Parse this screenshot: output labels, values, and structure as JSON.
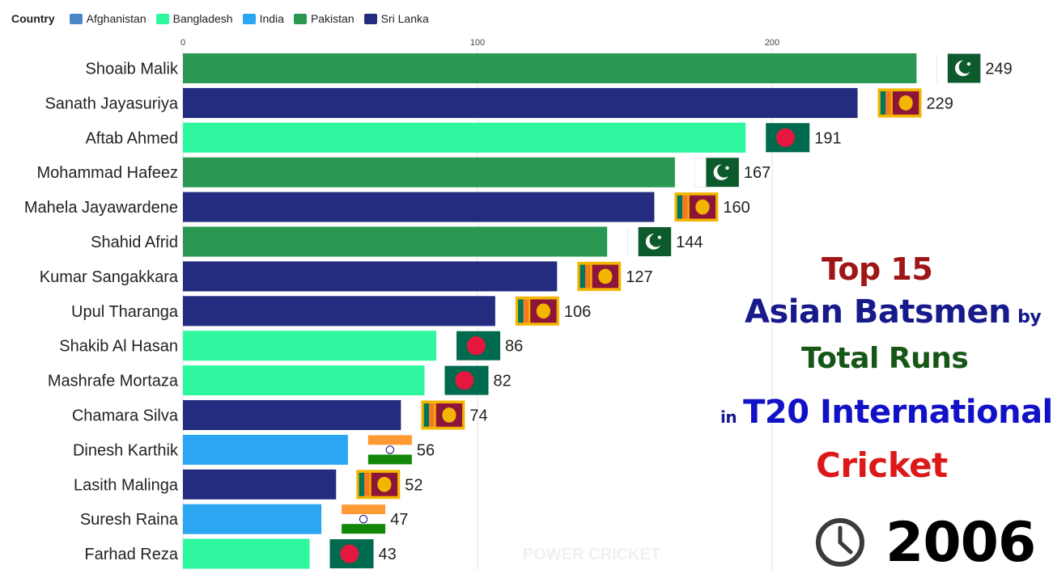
{
  "legend": {
    "title": "Country",
    "items": [
      {
        "label": "Afghanistan",
        "color": "#4a87c8"
      },
      {
        "label": "Bangladesh",
        "color": "#2ef7a0"
      },
      {
        "label": "India",
        "color": "#2aa6f2"
      },
      {
        "label": "Pakistan",
        "color": "#2a9752"
      },
      {
        "label": "Sri Lanka",
        "color": "#232c7e"
      }
    ]
  },
  "chart_data": {
    "type": "bar",
    "orientation": "horizontal",
    "categories": [
      "Shoaib Malik",
      "Sanath Jayasuriya",
      "Aftab Ahmed",
      "Mohammad Hafeez",
      "Mahela Jayawardene",
      "Shahid Afrid",
      "Kumar Sangakkara",
      "Upul Tharanga",
      "Shakib Al Hasan",
      "Mashrafe Mortaza",
      "Chamara Silva",
      "Dinesh Karthik",
      "Lasith Malinga",
      "Suresh Raina",
      "Farhad Reza"
    ],
    "values": [
      249,
      229,
      191,
      167,
      160,
      144,
      127,
      106,
      86,
      82,
      74,
      56,
      52,
      47,
      43
    ],
    "countries": [
      "Pakistan",
      "Sri Lanka",
      "Bangladesh",
      "Pakistan",
      "Sri Lanka",
      "Pakistan",
      "Sri Lanka",
      "Sri Lanka",
      "Bangladesh",
      "Bangladesh",
      "Sri Lanka",
      "India",
      "Sri Lanka",
      "India",
      "Bangladesh"
    ],
    "xlim": [
      0,
      260
    ],
    "xticks": [
      0,
      100,
      200
    ],
    "grid": true,
    "legend_position": "top-left",
    "title": [
      "Top 15",
      "Asian Batsmen",
      "by",
      "Total Runs",
      "in",
      "T20 International",
      "Cricket"
    ],
    "period": "2006"
  },
  "watermark": "POWER CRICKET"
}
